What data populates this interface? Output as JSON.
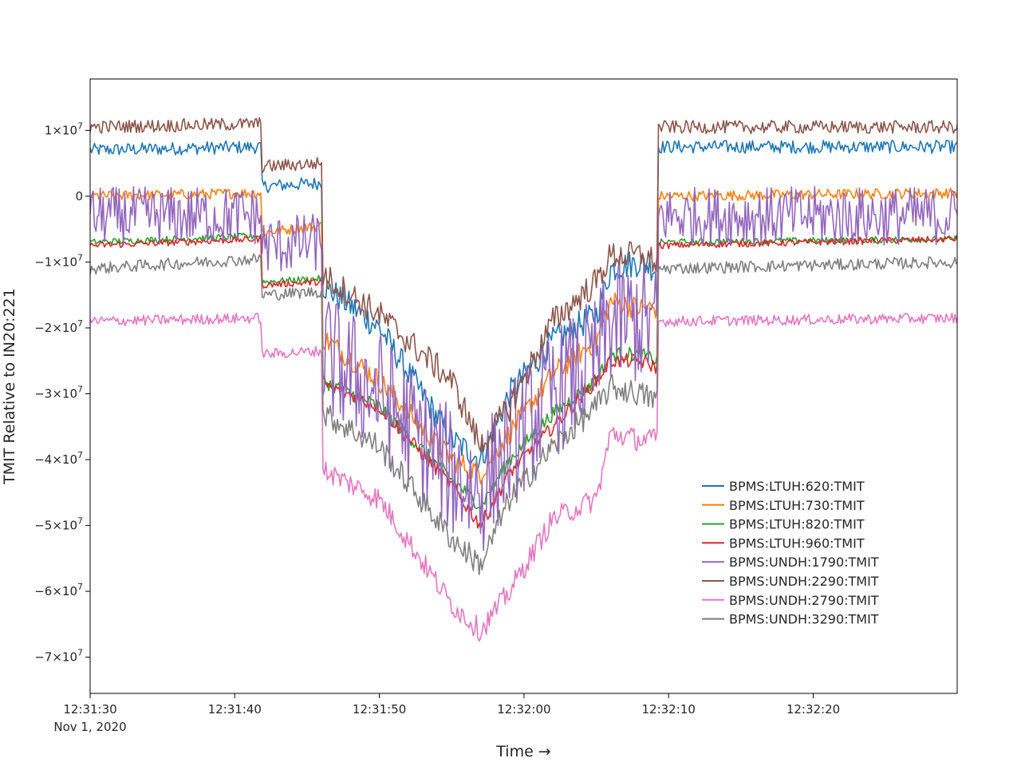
{
  "chart_data": {
    "type": "line",
    "xlabel": "Time →",
    "ylabel": "TMIT Relative to IN20:221",
    "x_ticks": [
      {
        "t": 0,
        "label": "12:31:30",
        "sublabel": "Nov 1, 2020"
      },
      {
        "t": 10,
        "label": "12:31:40",
        "sublabel": ""
      },
      {
        "t": 20,
        "label": "12:31:50",
        "sublabel": ""
      },
      {
        "t": 30,
        "label": "12:32:00",
        "sublabel": ""
      },
      {
        "t": 40,
        "label": "12:32:10",
        "sublabel": ""
      },
      {
        "t": 50,
        "label": "12:32:20",
        "sublabel": ""
      }
    ],
    "xlim_seconds": [
      0,
      60
    ],
    "y_ticks": [
      {
        "value": 10000000,
        "mantissa": "1×10",
        "exp": "7"
      },
      {
        "value": 0,
        "mantissa": "0",
        "exp": ""
      },
      {
        "value": -10000000,
        "mantissa": "−1×10",
        "exp": "7"
      },
      {
        "value": -20000000,
        "mantissa": "−2×10",
        "exp": "7"
      },
      {
        "value": -30000000,
        "mantissa": "−3×10",
        "exp": "7"
      },
      {
        "value": -40000000,
        "mantissa": "−4×10",
        "exp": "7"
      },
      {
        "value": -50000000,
        "mantissa": "−5×10",
        "exp": "7"
      },
      {
        "value": -60000000,
        "mantissa": "−6×10",
        "exp": "7"
      },
      {
        "value": -70000000,
        "mantissa": "−7×10",
        "exp": "7"
      }
    ],
    "ylim": [
      -75500000,
      17800000
    ],
    "legend_position": "lower-right",
    "series": [
      {
        "name": "BPMS:LTUH:620:TMIT",
        "color": "#1f77b4",
        "noise": 1000000,
        "keypoints": [
          [
            0,
            7000000
          ],
          [
            11.8,
            7500000
          ],
          [
            11.9,
            1500000
          ],
          [
            16,
            2000000
          ],
          [
            16.1,
            -13500000
          ],
          [
            20,
            -20000000
          ],
          [
            25,
            -37000000
          ],
          [
            27,
            -40000000
          ],
          [
            29,
            -30000000
          ],
          [
            32,
            -22000000
          ],
          [
            35,
            -18000000
          ],
          [
            36,
            -11000000
          ],
          [
            38,
            -10000000
          ],
          [
            39.2,
            -11000000
          ],
          [
            39.3,
            7500000
          ],
          [
            60,
            7500000
          ]
        ]
      },
      {
        "name": "BPMS:LTUH:730:TMIT",
        "color": "#ff7f0e",
        "noise": 800000,
        "keypoints": [
          [
            0,
            0
          ],
          [
            11.8,
            500000
          ],
          [
            11.9,
            -5500000
          ],
          [
            16,
            -4500000
          ],
          [
            16.1,
            -21500000
          ],
          [
            20,
            -28000000
          ],
          [
            25,
            -40000000
          ],
          [
            27,
            -42000000
          ],
          [
            29,
            -36000000
          ],
          [
            32,
            -27000000
          ],
          [
            35,
            -22000000
          ],
          [
            36,
            -16000000
          ],
          [
            38,
            -17000000
          ],
          [
            39.2,
            -17000000
          ],
          [
            39.3,
            0
          ],
          [
            60,
            500000
          ]
        ]
      },
      {
        "name": "BPMS:LTUH:820:TMIT",
        "color": "#2ca02c",
        "noise": 500000,
        "keypoints": [
          [
            0,
            -7000000
          ],
          [
            11.8,
            -6000000
          ],
          [
            11.9,
            -13000000
          ],
          [
            16,
            -12500000
          ],
          [
            16.1,
            -28000000
          ],
          [
            20,
            -32000000
          ],
          [
            25,
            -43000000
          ],
          [
            27,
            -47000000
          ],
          [
            29,
            -40000000
          ],
          [
            32,
            -33000000
          ],
          [
            35,
            -28000000
          ],
          [
            36,
            -24000000
          ],
          [
            38,
            -24000000
          ],
          [
            39.2,
            -25000000
          ],
          [
            39.3,
            -7000000
          ],
          [
            60,
            -6500000
          ]
        ]
      },
      {
        "name": "BPMS:LTUH:960:TMIT",
        "color": "#d62728",
        "noise": 500000,
        "keypoints": [
          [
            0,
            -7500000
          ],
          [
            11.8,
            -6500000
          ],
          [
            11.9,
            -13500000
          ],
          [
            16,
            -13000000
          ],
          [
            16.1,
            -28500000
          ],
          [
            20,
            -32000000
          ],
          [
            25,
            -44000000
          ],
          [
            27,
            -50000000
          ],
          [
            29,
            -42000000
          ],
          [
            32,
            -35000000
          ],
          [
            35,
            -28000000
          ],
          [
            36,
            -25000000
          ],
          [
            38,
            -25000000
          ],
          [
            39.2,
            -26000000
          ],
          [
            39.3,
            -7500000
          ],
          [
            60,
            -6500000
          ]
        ]
      },
      {
        "name": "BPMS:UNDH:1790:TMIT",
        "color": "#9467bd",
        "noise": 4500000,
        "keypoints": [
          [
            0,
            -3000000
          ],
          [
            11.8,
            -3000000
          ],
          [
            11.9,
            -7500000
          ],
          [
            16,
            -7000000
          ],
          [
            16.1,
            -24000000
          ],
          [
            20,
            -30000000
          ],
          [
            25,
            -42000000
          ],
          [
            27,
            -45000000
          ],
          [
            29,
            -38000000
          ],
          [
            32,
            -30000000
          ],
          [
            35,
            -25000000
          ],
          [
            36,
            -19000000
          ],
          [
            38,
            -19000000
          ],
          [
            39.2,
            -20000000
          ],
          [
            39.3,
            -3000000
          ],
          [
            60,
            -3000000
          ]
        ]
      },
      {
        "name": "BPMS:UNDH:2290:TMIT",
        "color": "#8c564b",
        "noise": 1000000,
        "keypoints": [
          [
            0,
            10500000
          ],
          [
            11.8,
            11000000
          ],
          [
            11.9,
            4500000
          ],
          [
            16,
            5000000
          ],
          [
            16.1,
            -12000000
          ],
          [
            20,
            -18000000
          ],
          [
            25,
            -28000000
          ],
          [
            27,
            -38000000
          ],
          [
            29,
            -32000000
          ],
          [
            32,
            -19000000
          ],
          [
            35,
            -13000000
          ],
          [
            36,
            -9000000
          ],
          [
            38,
            -9000000
          ],
          [
            39.2,
            -10000000
          ],
          [
            39.3,
            10500000
          ],
          [
            60,
            10500000
          ]
        ]
      },
      {
        "name": "BPMS:UNDH:2790:TMIT",
        "color": "#e377c2",
        "noise": 800000,
        "keypoints": [
          [
            0,
            -19000000
          ],
          [
            11.8,
            -18500000
          ],
          [
            11.9,
            -24000000
          ],
          [
            16,
            -23500000
          ],
          [
            16.1,
            -41500000
          ],
          [
            20,
            -46000000
          ],
          [
            25,
            -62000000
          ],
          [
            27,
            -66000000
          ],
          [
            29,
            -60000000
          ],
          [
            32,
            -49000000
          ],
          [
            35,
            -46000000
          ],
          [
            36,
            -36000000
          ],
          [
            38,
            -37000000
          ],
          [
            39.2,
            -37000000
          ],
          [
            39.3,
            -19000000
          ],
          [
            60,
            -18500000
          ]
        ]
      },
      {
        "name": "BPMS:UNDH:3290:TMIT",
        "color": "#7f7f7f",
        "noise": 900000,
        "keypoints": [
          [
            0,
            -11000000
          ],
          [
            11.8,
            -9500000
          ],
          [
            11.9,
            -15000000
          ],
          [
            16,
            -14500000
          ],
          [
            16.1,
            -33000000
          ],
          [
            20,
            -38000000
          ],
          [
            25,
            -52000000
          ],
          [
            27,
            -56000000
          ],
          [
            29,
            -46000000
          ],
          [
            32,
            -38000000
          ],
          [
            35,
            -32000000
          ],
          [
            36,
            -29000000
          ],
          [
            38,
            -30000000
          ],
          [
            39.2,
            -31000000
          ],
          [
            39.3,
            -11000000
          ],
          [
            60,
            -10000000
          ]
        ]
      }
    ]
  }
}
